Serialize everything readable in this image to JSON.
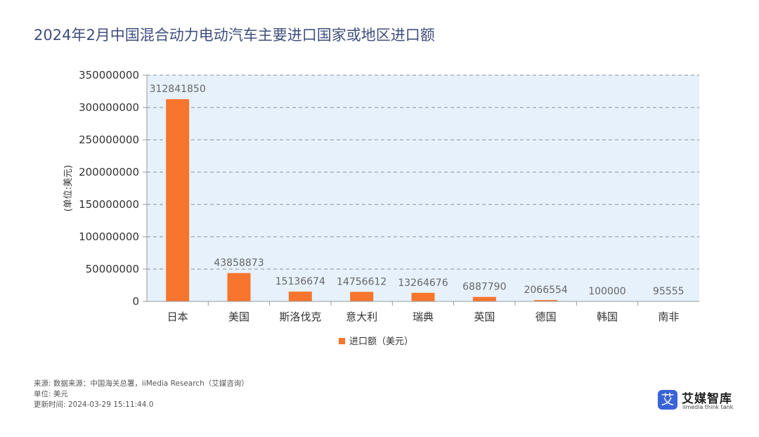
{
  "chart_data": {
    "type": "bar",
    "title": "2024年2月中国混合动力电动汽车主要进口国家或地区进口额",
    "categories": [
      "日本",
      "美国",
      "斯洛伐克",
      "意大利",
      "瑞典",
      "英国",
      "德国",
      "韩国",
      "南非"
    ],
    "series": [
      {
        "name": "进口额（美元）",
        "values": [
          312841850,
          43858873,
          15136674,
          14756612,
          13264676,
          6887790,
          2066554,
          100000,
          95555
        ]
      }
    ],
    "ylabel": "(单位:美元)",
    "xlabel": "",
    "ylim": [
      0,
      350000000
    ],
    "yticks": [
      0,
      50000000,
      100000000,
      150000000,
      200000000,
      250000000,
      300000000,
      350000000
    ],
    "grid": true,
    "legend_position": "bottom-center",
    "colors": {
      "bar": "#f7752d",
      "plot_bg": "#e6f1fc",
      "grid": "#8f8f8f",
      "title": "#3f4f7d"
    }
  },
  "footer": {
    "source": "来源: 数据来源：中国海关总署，iiMedia Research（艾媒咨询）",
    "unit": "单位: 美元",
    "updated": "更新时间: 2024-03-29 15:11:44.0"
  },
  "logo": {
    "icon": "ai-badge-icon",
    "glyph": "艾",
    "name": "艾媒智库",
    "subtitle": "iimedia think tank"
  }
}
